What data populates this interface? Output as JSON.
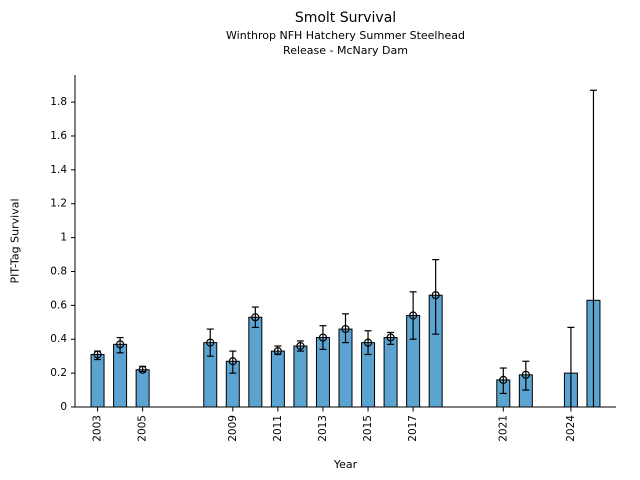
{
  "chart_data": {
    "type": "bar",
    "title": "Smolt Survival",
    "subtitle": "Winthrop NFH Hatchery Summer Steelhead",
    "subtitle2": "Release - McNary Dam",
    "xlabel": "Year",
    "ylabel": "PIT-Tag Survival",
    "ylim": [
      0,
      1.96
    ],
    "yticks": [
      0,
      0.2,
      0.4,
      0.6,
      0.8,
      1,
      1.2,
      1.4,
      1.6,
      1.8
    ],
    "xlim": [
      2002,
      2026
    ],
    "xticks": [
      2003,
      2005,
      2009,
      2011,
      2013,
      2015,
      2017,
      2021,
      2024
    ],
    "grid": false,
    "legend": null,
    "bar_color": "#5BA3D0",
    "edge_color": "#000000",
    "points": [
      {
        "year": 2003,
        "value": 0.31,
        "err_low": 0.28,
        "err_high": 0.33,
        "marker": true
      },
      {
        "year": 2004,
        "value": 0.37,
        "err_low": 0.32,
        "err_high": 0.41,
        "marker": true
      },
      {
        "year": 2005,
        "value": 0.22,
        "err_low": 0.21,
        "err_high": 0.24,
        "marker": true
      },
      {
        "year": 2008,
        "value": 0.38,
        "err_low": 0.3,
        "err_high": 0.46,
        "marker": true
      },
      {
        "year": 2009,
        "value": 0.27,
        "err_low": 0.2,
        "err_high": 0.33,
        "marker": true
      },
      {
        "year": 2010,
        "value": 0.53,
        "err_low": 0.47,
        "err_high": 0.59,
        "marker": true
      },
      {
        "year": 2011,
        "value": 0.33,
        "err_low": 0.31,
        "err_high": 0.36,
        "marker": true
      },
      {
        "year": 2012,
        "value": 0.36,
        "err_low": 0.33,
        "err_high": 0.39,
        "marker": true
      },
      {
        "year": 2013,
        "value": 0.41,
        "err_low": 0.34,
        "err_high": 0.48,
        "marker": true
      },
      {
        "year": 2014,
        "value": 0.46,
        "err_low": 0.38,
        "err_high": 0.55,
        "marker": true
      },
      {
        "year": 2015,
        "value": 0.38,
        "err_low": 0.31,
        "err_high": 0.45,
        "marker": true
      },
      {
        "year": 2016,
        "value": 0.41,
        "err_low": 0.37,
        "err_high": 0.44,
        "marker": true
      },
      {
        "year": 2017,
        "value": 0.54,
        "err_low": 0.4,
        "err_high": 0.68,
        "marker": true
      },
      {
        "year": 2018,
        "value": 0.66,
        "err_low": 0.43,
        "err_high": 0.87,
        "marker": true
      },
      {
        "year": 2021,
        "value": 0.16,
        "err_low": 0.08,
        "err_high": 0.23,
        "marker": true
      },
      {
        "year": 2022,
        "value": 0.19,
        "err_low": 0.1,
        "err_high": 0.27,
        "marker": true
      },
      {
        "year": 2024,
        "value": 0.2,
        "err_low": 0.0,
        "err_high": 0.47,
        "marker": false
      },
      {
        "year": 2025,
        "value": 0.63,
        "err_low": 0.0,
        "err_high": 1.87,
        "marker": false
      }
    ]
  }
}
